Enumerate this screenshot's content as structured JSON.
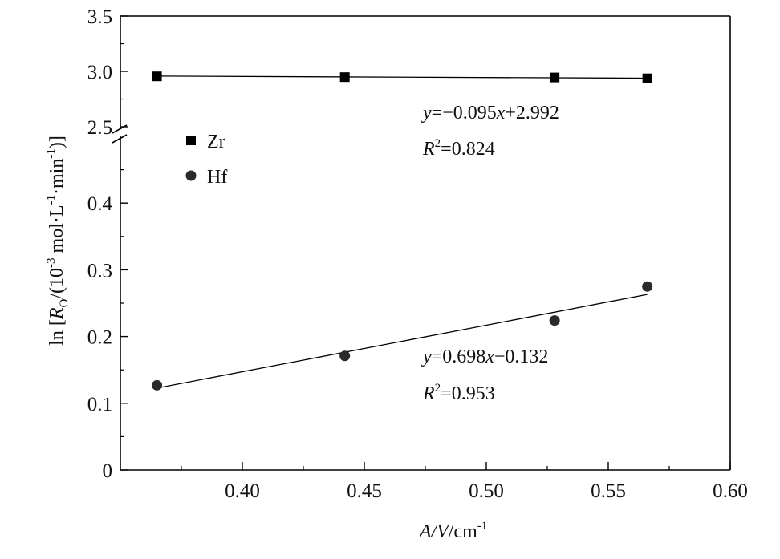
{
  "chart_data": {
    "type": "scatter",
    "xlabel": {
      "italic_part": "A/V",
      "rest": "/cm",
      "sup": "-1"
    },
    "ylabel": {
      "pre": "ln [",
      "italic": "R",
      "sub": "O",
      "mid": "/(10",
      "sup1": "-3",
      "mid2": " mol·L",
      "sup2": "-1",
      "mid3": "·min",
      "sup3": "-1",
      "post": ")]"
    },
    "xlim": [
      0.35,
      0.6
    ],
    "x_ticks": [
      "0.40",
      "0.45",
      "0.50",
      "0.55",
      "0.60"
    ],
    "x_tick_values": [
      0.4,
      0.45,
      0.5,
      0.55,
      0.6
    ],
    "y_lower": {
      "range": [
        0,
        0.5
      ],
      "ticks": [
        "0",
        "0.1",
        "0.2",
        "0.3",
        "0.4"
      ],
      "tick_values": [
        0,
        0.1,
        0.2,
        0.3,
        0.4
      ]
    },
    "y_upper": {
      "range": [
        2.5,
        3.5
      ],
      "ticks": [
        "2.5",
        "3.0",
        "3.5"
      ],
      "tick_values": [
        2.5,
        3.0,
        3.5
      ]
    },
    "axis_break": true,
    "legend_position": "upper-left",
    "series": [
      {
        "name": "Zr",
        "marker": "square",
        "segment": "upper",
        "x": [
          0.365,
          0.442,
          0.528,
          0.566
        ],
        "y": [
          2.955,
          2.948,
          2.945,
          2.937
        ],
        "fit": {
          "slope": -0.095,
          "intercept": 2.992,
          "x_range": [
            0.365,
            0.566
          ]
        },
        "equation": {
          "y": "y",
          "rhs": "=−0.095",
          "x": "x",
          "tail": "+2.992"
        },
        "r2": {
          "R": "R",
          "sup": "2",
          "val": "=0.824"
        }
      },
      {
        "name": "Hf",
        "marker": "circle",
        "segment": "lower",
        "x": [
          0.365,
          0.442,
          0.528,
          0.566
        ],
        "y": [
          0.127,
          0.171,
          0.224,
          0.275
        ],
        "fit": {
          "slope": 0.698,
          "intercept": -0.132,
          "x_range": [
            0.365,
            0.566
          ]
        },
        "equation": {
          "y": "y",
          "rhs": "=0.698",
          "x": "x",
          "tail": "−0.132"
        },
        "r2": {
          "R": "R",
          "sup": "2",
          "val": "=0.953"
        }
      }
    ]
  }
}
